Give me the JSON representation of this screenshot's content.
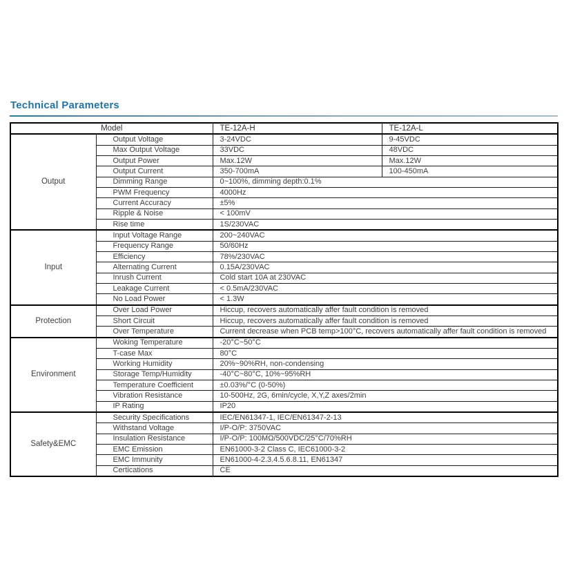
{
  "page": {
    "title": "Technical Parameters"
  },
  "colors": {
    "title_blue": "#2473a6",
    "rule_blue_fade": "#a7bac4",
    "table_border": "#000000",
    "table_text": "#3f3f3f"
  },
  "table": {
    "header": {
      "model_label": "Model",
      "col_h": "TE-12A-H",
      "col_l": "TE-12A-L"
    },
    "groups": [
      {
        "label": "Output",
        "rows": [
          {
            "param": "Output Voltage",
            "h": "3-24VDC",
            "l": "9-45VDC"
          },
          {
            "param": "Max Output Voltage",
            "h": "33VDC",
            "l": "48VDC"
          },
          {
            "param": "Output Power",
            "h": "Max.12W",
            "l": "Max.12W"
          },
          {
            "param": "Output Current",
            "h": "350-700mA",
            "l": "100-450mA"
          },
          {
            "param": "Dimming Range",
            "value": "0~100%, dimming depth:0.1%"
          },
          {
            "param": "PWM Frequency",
            "value": "4000Hz"
          },
          {
            "param": "Current Accuracy",
            "value": "±5%"
          },
          {
            "param": "Ripple & Noise",
            "value": "< 100mV"
          },
          {
            "param": "Rise time",
            "value": "1S/230VAC"
          }
        ]
      },
      {
        "label": "Input",
        "rows": [
          {
            "param": "Input Voltage Range",
            "value": "200~240VAC"
          },
          {
            "param": "Frequency Range",
            "value": "50/60Hz"
          },
          {
            "param": "Efficiency",
            "value": "78%/230VAC"
          },
          {
            "param": "Alternating Current",
            "value": "0.15A/230VAC"
          },
          {
            "param": "Inrush Current",
            "value": "Cold start 10A at 230VAC"
          },
          {
            "param": "Leakage Current",
            "value": "< 0.5mA/230VAC"
          },
          {
            "param": "No Load Power",
            "value": "< 1.3W"
          }
        ]
      },
      {
        "label": "Protection",
        "rows": [
          {
            "param": "Over Load Power",
            "value": "Hiccup, recovers automatically affer fault condition is removed"
          },
          {
            "param": "Short Circuit",
            "value": "Hiccup, recovers automatically affer fault condition is removed"
          },
          {
            "param": "Over Temperature",
            "value": "Current decrease when PCB temp>100°C, recovers automatically affer fault condition is removed"
          }
        ]
      },
      {
        "label": "Environment",
        "rows": [
          {
            "param": "Woking Temperature",
            "value": "-20°C~50°C"
          },
          {
            "param": "T-case Max",
            "value": "80°C"
          },
          {
            "param": "Working Humidity",
            "value": "20%~90%RH, non-condensing"
          },
          {
            "param": "Storage Temp/Humidity",
            "value": "-40°C~80°C, 10%~95%RH"
          },
          {
            "param": "Temperature Coefficient",
            "value": "±0.03%/°C (0-50%)"
          },
          {
            "param": "Vibration Resistance",
            "value": "10-500Hz, 2G, 6min/cycle, X,Y,Z axes/2min"
          },
          {
            "param": "IP Rating",
            "value": "IP20"
          }
        ]
      },
      {
        "label": "Safety&EMC",
        "rows": [
          {
            "param": "Security Specifications",
            "value": "IEC/EN61347-1, IEC/EN61347-2-13"
          },
          {
            "param": "Withstand Voltage",
            "value": "I/P-O/P: 3750VAC"
          },
          {
            "param": "Insulation Resistance",
            "value": "I/P-O/P: 100MΩ/500VDC/25°C/70%RH"
          },
          {
            "param": "EMC Emission",
            "value": "EN61000-3-2 Class C, IEC61000-3-2"
          },
          {
            "param": "EMC Immunity",
            "value": "EN61000-4-2.3.4.5.6.8.11, EN61347"
          },
          {
            "param": "Certications",
            "value": "CE"
          }
        ]
      }
    ]
  }
}
